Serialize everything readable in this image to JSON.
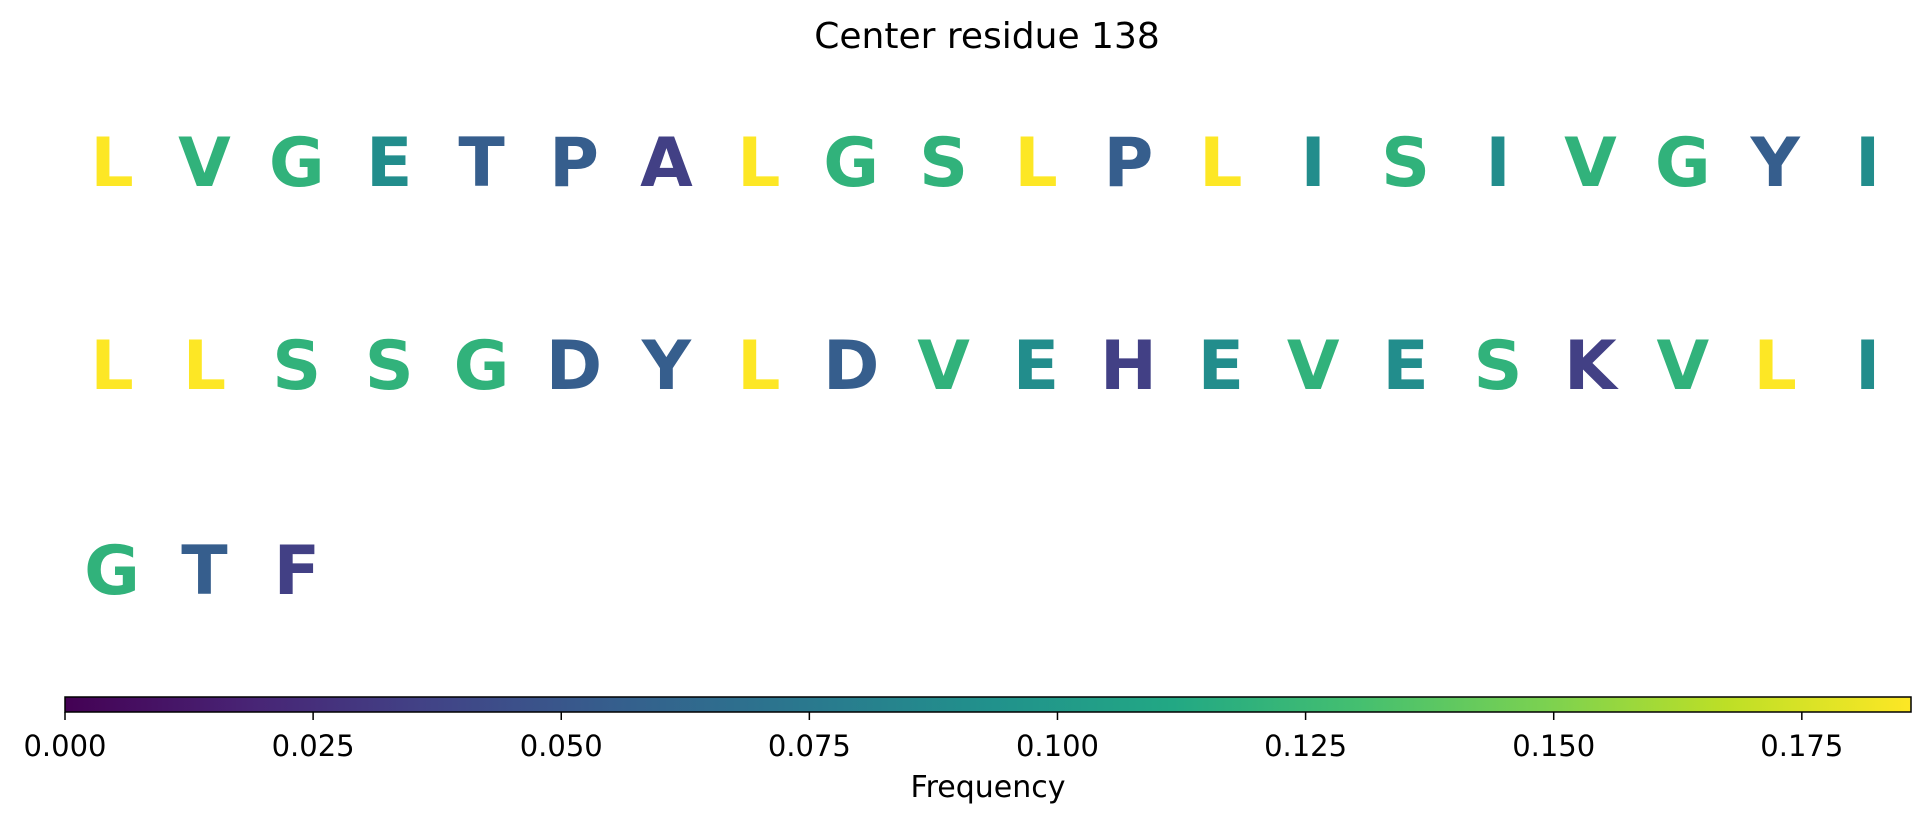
{
  "chart_data": {
    "type": "heatmap",
    "title": "Center residue 138",
    "residues": [
      {
        "letter": "L",
        "frequency": 0.186
      },
      {
        "letter": "V",
        "frequency": 0.12
      },
      {
        "letter": "G",
        "frequency": 0.12
      },
      {
        "letter": "E",
        "frequency": 0.09
      },
      {
        "letter": "T",
        "frequency": 0.055
      },
      {
        "letter": "P",
        "frequency": 0.055
      },
      {
        "letter": "A",
        "frequency": 0.035
      },
      {
        "letter": "L",
        "frequency": 0.186
      },
      {
        "letter": "G",
        "frequency": 0.12
      },
      {
        "letter": "S",
        "frequency": 0.12
      },
      {
        "letter": "L",
        "frequency": 0.186
      },
      {
        "letter": "P",
        "frequency": 0.055
      },
      {
        "letter": "L",
        "frequency": 0.186
      },
      {
        "letter": "I",
        "frequency": 0.09
      },
      {
        "letter": "S",
        "frequency": 0.12
      },
      {
        "letter": "I",
        "frequency": 0.09
      },
      {
        "letter": "V",
        "frequency": 0.12
      },
      {
        "letter": "G",
        "frequency": 0.12
      },
      {
        "letter": "Y",
        "frequency": 0.055
      },
      {
        "letter": "I",
        "frequency": 0.09
      },
      {
        "letter": "L",
        "frequency": 0.186
      },
      {
        "letter": "L",
        "frequency": 0.186
      },
      {
        "letter": "S",
        "frequency": 0.12
      },
      {
        "letter": "S",
        "frequency": 0.12
      },
      {
        "letter": "G",
        "frequency": 0.12
      },
      {
        "letter": "D",
        "frequency": 0.055
      },
      {
        "letter": "Y",
        "frequency": 0.055
      },
      {
        "letter": "L",
        "frequency": 0.186
      },
      {
        "letter": "D",
        "frequency": 0.055
      },
      {
        "letter": "V",
        "frequency": 0.12
      },
      {
        "letter": "E",
        "frequency": 0.09
      },
      {
        "letter": "H",
        "frequency": 0.035
      },
      {
        "letter": "E",
        "frequency": 0.09
      },
      {
        "letter": "V",
        "frequency": 0.12
      },
      {
        "letter": "E",
        "frequency": 0.09
      },
      {
        "letter": "S",
        "frequency": 0.12
      },
      {
        "letter": "K",
        "frequency": 0.035
      },
      {
        "letter": "V",
        "frequency": 0.12
      },
      {
        "letter": "L",
        "frequency": 0.186
      },
      {
        "letter": "I",
        "frequency": 0.09
      },
      {
        "letter": "G",
        "frequency": 0.12
      },
      {
        "letter": "T",
        "frequency": 0.055
      },
      {
        "letter": "F",
        "frequency": 0.035
      }
    ],
    "residues_per_row": 20,
    "colorbar": {
      "label": "Frequency",
      "colormap": "viridis",
      "orientation": "horizontal",
      "range": [
        0.0,
        0.186
      ],
      "ticks": [
        0.0,
        0.025,
        0.05,
        0.075,
        0.1,
        0.125,
        0.15,
        0.175
      ],
      "tick_labels": [
        "0.000",
        "0.025",
        "0.050",
        "0.075",
        "0.100",
        "0.125",
        "0.150",
        "0.175"
      ]
    }
  }
}
